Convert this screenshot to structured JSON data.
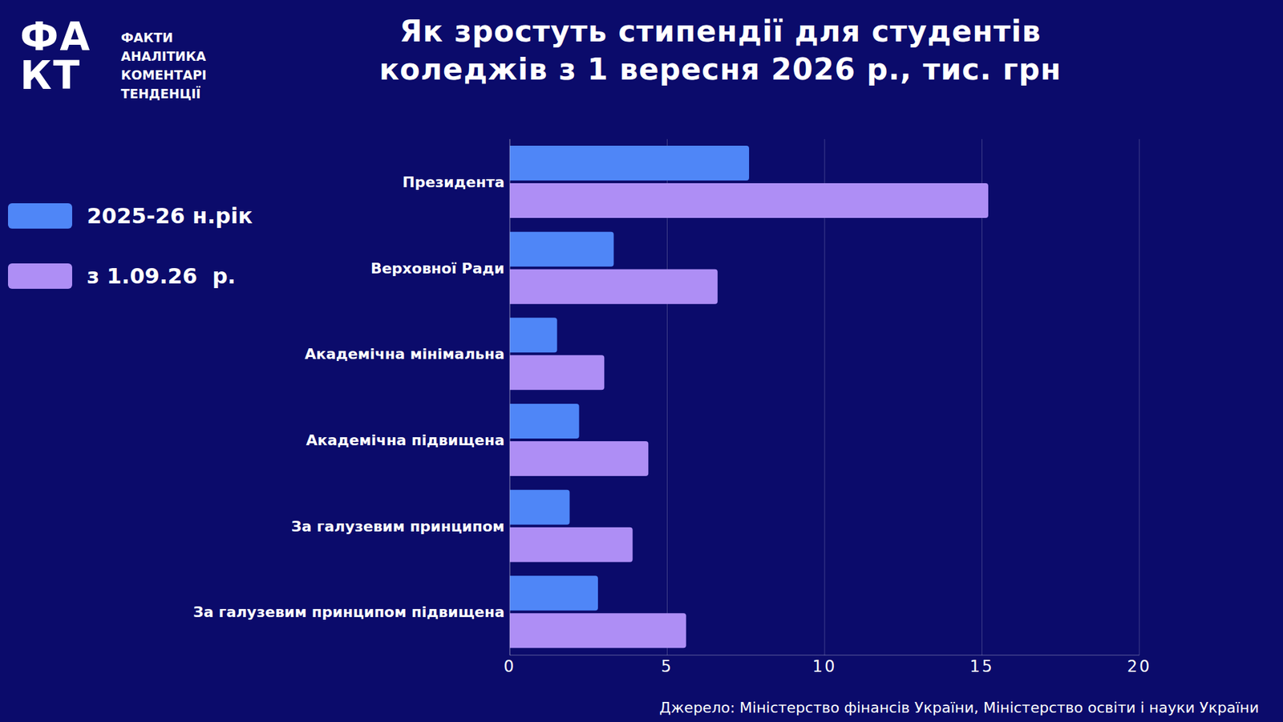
{
  "logo": {
    "mark": [
      "ФА",
      "КТ"
    ],
    "lines": [
      "ФАКТИ",
      "АНАЛІТИКА",
      "КОМЕНТАРІ",
      "ТЕНДЕНЦІЇ"
    ]
  },
  "source": "Джерело: Міністерство фінансів України, Міністерство освіти і науки України",
  "chart_data": {
    "type": "bar",
    "title": "Як зростуть стипендії для студентів коледжів з 1 вересня 2026 р., тис. грн",
    "orientation": "horizontal",
    "categories": [
      "Президента",
      "Верховної Ради",
      "Академічна мінімальна",
      "Академічна підвищена",
      "За галузевим принципом",
      "За галузевим принципом підвищена"
    ],
    "series": [
      {
        "name": "2025-26 н.рік",
        "color": "#4f86f7",
        "values": [
          7.6,
          3.3,
          1.5,
          2.2,
          1.9,
          2.8
        ]
      },
      {
        "name": "з 1.09.26  р.",
        "color": "#ae8ef5",
        "values": [
          15.2,
          6.6,
          3.0,
          4.4,
          3.9,
          5.6
        ]
      }
    ],
    "xlim": [
      0,
      20
    ],
    "xticks": [
      0,
      5,
      10,
      15,
      20
    ],
    "grid": true,
    "legend": "left"
  }
}
